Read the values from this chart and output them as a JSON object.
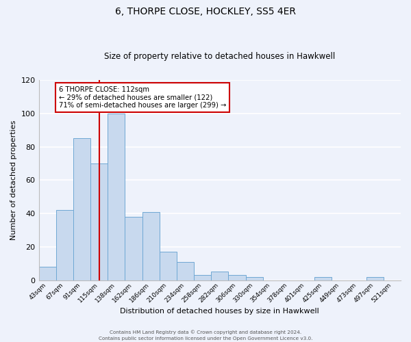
{
  "title": "6, THORPE CLOSE, HOCKLEY, SS5 4ER",
  "subtitle": "Size of property relative to detached houses in Hawkwell",
  "xlabel": "Distribution of detached houses by size in Hawkwell",
  "ylabel": "Number of detached properties",
  "bar_color": "#c8d9ee",
  "bar_edge_color": "#6fa8d4",
  "background_color": "#eef2fb",
  "grid_color": "#ffffff",
  "categories": [
    "43sqm",
    "67sqm",
    "91sqm",
    "115sqm",
    "138sqm",
    "162sqm",
    "186sqm",
    "210sqm",
    "234sqm",
    "258sqm",
    "282sqm",
    "306sqm",
    "330sqm",
    "354sqm",
    "378sqm",
    "401sqm",
    "425sqm",
    "449sqm",
    "473sqm",
    "497sqm",
    "521sqm"
  ],
  "values": [
    8,
    42,
    85,
    70,
    100,
    38,
    41,
    17,
    11,
    3,
    5,
    3,
    2,
    0,
    0,
    0,
    2,
    0,
    0,
    2,
    0
  ],
  "ylim": [
    0,
    120
  ],
  "yticks": [
    0,
    20,
    40,
    60,
    80,
    100,
    120
  ],
  "property_line_color": "#cc0000",
  "annotation_text": "6 THORPE CLOSE: 112sqm\n← 29% of detached houses are smaller (122)\n71% of semi-detached houses are larger (299) →",
  "annotation_box_color": "#ffffff",
  "annotation_box_edge": "#cc0000",
  "footer_line1": "Contains HM Land Registry data © Crown copyright and database right 2024.",
  "footer_line2": "Contains public sector information licensed under the Open Government Licence v3.0."
}
